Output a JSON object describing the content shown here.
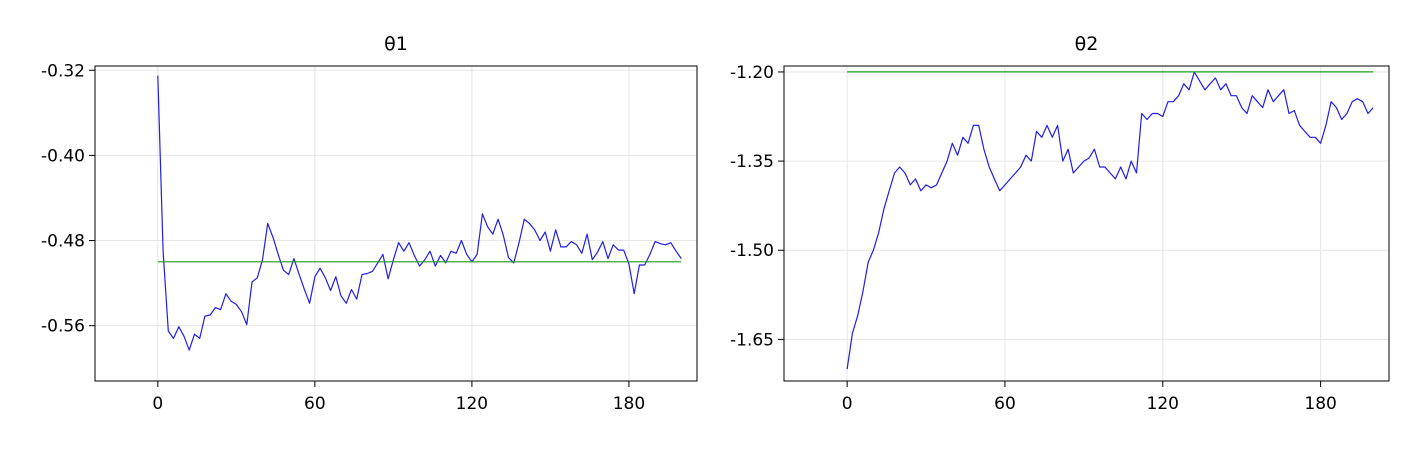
{
  "chart_data": [
    {
      "type": "line",
      "title": "θ1",
      "xlabel": "",
      "ylabel": "",
      "xlim": [
        -24,
        206
      ],
      "ylim": [
        -0.612,
        -0.316
      ],
      "xticks": [
        0,
        60,
        120,
        180
      ],
      "xtick_labels": [
        "0",
        "60",
        "120",
        "180"
      ],
      "yticks": [
        -0.56,
        -0.48,
        -0.4,
        -0.32
      ],
      "ytick_labels": [
        "-0.56",
        "-0.48",
        "-0.40",
        "-0.32"
      ],
      "grid": true,
      "legend": "none",
      "series": [
        {
          "color": "#1f1fe6",
          "x": [
            0,
            2,
            4,
            6,
            8,
            10,
            12,
            14,
            16,
            18,
            20,
            22,
            24,
            26,
            28,
            30,
            32,
            34,
            36,
            38,
            40,
            42,
            44,
            46,
            48,
            50,
            52,
            54,
            56,
            58,
            60,
            62,
            64,
            66,
            68,
            70,
            72,
            74,
            76,
            78,
            80,
            82,
            84,
            86,
            88,
            90,
            92,
            94,
            96,
            98,
            100,
            102,
            104,
            106,
            108,
            110,
            112,
            114,
            116,
            118,
            120,
            122,
            124,
            126,
            128,
            130,
            132,
            134,
            136,
            138,
            140,
            142,
            144,
            146,
            148,
            150,
            152,
            154,
            156,
            158,
            160,
            162,
            164,
            166,
            168,
            170,
            172,
            174,
            176,
            178,
            180,
            182,
            184,
            186,
            188,
            190,
            192,
            194,
            196,
            198,
            200
          ],
          "values": [
            -0.325,
            -0.49,
            -0.565,
            -0.572,
            -0.561,
            -0.57,
            -0.583,
            -0.568,
            -0.572,
            -0.551,
            -0.55,
            -0.543,
            -0.545,
            -0.53,
            -0.537,
            -0.54,
            -0.547,
            -0.559,
            -0.519,
            -0.515,
            -0.498,
            -0.464,
            -0.477,
            -0.493,
            -0.508,
            -0.512,
            -0.497,
            -0.512,
            -0.526,
            -0.539,
            -0.514,
            -0.506,
            -0.515,
            -0.527,
            -0.514,
            -0.532,
            -0.539,
            -0.526,
            -0.535,
            -0.512,
            -0.511,
            -0.509,
            -0.501,
            -0.493,
            -0.516,
            -0.498,
            -0.482,
            -0.49,
            -0.482,
            -0.494,
            -0.504,
            -0.498,
            -0.49,
            -0.504,
            -0.494,
            -0.501,
            -0.49,
            -0.492,
            -0.48,
            -0.493,
            -0.5,
            -0.493,
            -0.455,
            -0.467,
            -0.474,
            -0.46,
            -0.475,
            -0.496,
            -0.501,
            -0.482,
            -0.46,
            -0.464,
            -0.47,
            -0.48,
            -0.472,
            -0.49,
            -0.47,
            -0.486,
            -0.486,
            -0.481,
            -0.484,
            -0.492,
            -0.474,
            -0.498,
            -0.491,
            -0.481,
            -0.497,
            -0.484,
            -0.489,
            -0.489,
            -0.502,
            -0.53,
            -0.503,
            -0.503,
            -0.493,
            -0.481,
            -0.483,
            -0.484,
            -0.482,
            -0.49,
            -0.497
          ]
        },
        {
          "color": "#1a9c1a",
          "x": [
            0,
            200
          ],
          "values": [
            -0.5,
            -0.5
          ]
        }
      ]
    },
    {
      "type": "line",
      "title": "θ2",
      "xlabel": "",
      "ylabel": "",
      "xlim": [
        -24,
        206
      ],
      "ylim": [
        -1.72,
        -1.19
      ],
      "xticks": [
        0,
        60,
        120,
        180
      ],
      "xtick_labels": [
        "0",
        "60",
        "120",
        "180"
      ],
      "yticks": [
        -1.65,
        -1.5,
        -1.35,
        -1.2
      ],
      "ytick_labels": [
        "-1.65",
        "-1.50",
        "-1.35",
        "-1.20"
      ],
      "grid": true,
      "legend": "none",
      "series": [
        {
          "color": "#1f1fe6",
          "x": [
            0,
            2,
            4,
            6,
            8,
            10,
            12,
            14,
            16,
            18,
            20,
            22,
            24,
            26,
            28,
            30,
            32,
            34,
            36,
            38,
            40,
            42,
            44,
            46,
            48,
            50,
            52,
            54,
            56,
            58,
            60,
            62,
            64,
            66,
            68,
            70,
            72,
            74,
            76,
            78,
            80,
            82,
            84,
            86,
            88,
            90,
            92,
            94,
            96,
            98,
            100,
            102,
            104,
            106,
            108,
            110,
            112,
            114,
            116,
            118,
            120,
            122,
            124,
            126,
            128,
            130,
            132,
            134,
            136,
            138,
            140,
            142,
            144,
            146,
            148,
            150,
            152,
            154,
            156,
            158,
            160,
            162,
            164,
            166,
            168,
            170,
            172,
            174,
            176,
            178,
            180,
            182,
            184,
            186,
            188,
            190,
            192,
            194,
            196,
            198,
            200
          ],
          "values": [
            -1.7,
            -1.64,
            -1.61,
            -1.57,
            -1.52,
            -1.5,
            -1.47,
            -1.43,
            -1.4,
            -1.37,
            -1.36,
            -1.37,
            -1.39,
            -1.38,
            -1.4,
            -1.39,
            -1.395,
            -1.39,
            -1.37,
            -1.35,
            -1.32,
            -1.34,
            -1.31,
            -1.32,
            -1.29,
            -1.29,
            -1.33,
            -1.36,
            -1.38,
            -1.4,
            -1.39,
            -1.38,
            -1.37,
            -1.36,
            -1.34,
            -1.35,
            -1.3,
            -1.31,
            -1.29,
            -1.31,
            -1.29,
            -1.35,
            -1.33,
            -1.37,
            -1.36,
            -1.35,
            -1.345,
            -1.33,
            -1.36,
            -1.36,
            -1.37,
            -1.38,
            -1.36,
            -1.38,
            -1.35,
            -1.37,
            -1.27,
            -1.28,
            -1.27,
            -1.27,
            -1.275,
            -1.25,
            -1.25,
            -1.24,
            -1.22,
            -1.23,
            -1.2,
            -1.215,
            -1.23,
            -1.22,
            -1.21,
            -1.23,
            -1.22,
            -1.24,
            -1.24,
            -1.26,
            -1.27,
            -1.24,
            -1.25,
            -1.26,
            -1.23,
            -1.25,
            -1.24,
            -1.23,
            -1.27,
            -1.265,
            -1.29,
            -1.3,
            -1.31,
            -1.31,
            -1.32,
            -1.29,
            -1.25,
            -1.26,
            -1.28,
            -1.27,
            -1.25,
            -1.245,
            -1.25,
            -1.27,
            -1.26
          ]
        },
        {
          "color": "#1a9c1a",
          "x": [
            0,
            200
          ],
          "values": [
            -1.2,
            -1.2
          ]
        }
      ]
    }
  ]
}
